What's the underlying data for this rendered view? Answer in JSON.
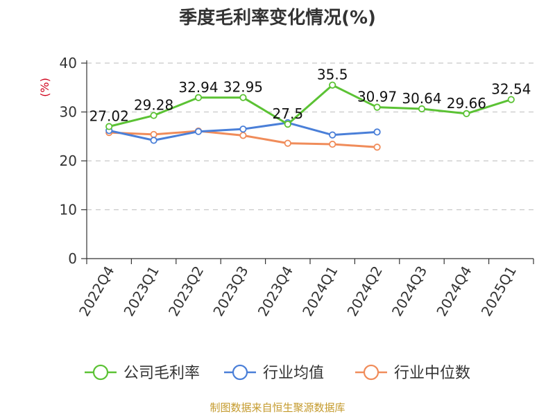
{
  "title": "季度毛利率变化情况(%)",
  "source": "制图数据来自恒生聚源数据库",
  "chart_data": {
    "type": "line",
    "title": "季度毛利率变化情况(%)",
    "ylabel": "(%)",
    "xlabel": "",
    "ylim": [
      0,
      40
    ],
    "yticks": [
      0,
      10,
      20,
      30,
      40
    ],
    "grid": true,
    "legend_position": "bottom",
    "categories": [
      "2022Q4",
      "2023Q1",
      "2023Q2",
      "2023Q3",
      "2023Q4",
      "2024Q1",
      "2024Q2",
      "2024Q3",
      "2024Q4",
      "2025Q1"
    ],
    "series": [
      {
        "name": "公司毛利率",
        "color": "#5bc234",
        "values": [
          27.02,
          29.28,
          32.94,
          32.95,
          27.5,
          35.5,
          30.97,
          30.64,
          29.66,
          32.54
        ],
        "labels": [
          "27.02",
          "29.28",
          "32.94",
          "32.95",
          "27.5",
          "35.5",
          "30.97",
          "30.64",
          "29.66",
          "32.54"
        ]
      },
      {
        "name": "行业均值",
        "color": "#4a7fd8",
        "values": [
          26.2,
          24.2,
          26.0,
          26.5,
          27.8,
          25.3,
          25.9,
          null,
          null,
          null
        ]
      },
      {
        "name": "行业中位数",
        "color": "#f08c5a",
        "values": [
          25.8,
          25.4,
          26.1,
          25.2,
          23.6,
          23.4,
          22.8,
          null,
          null,
          null
        ]
      }
    ]
  }
}
